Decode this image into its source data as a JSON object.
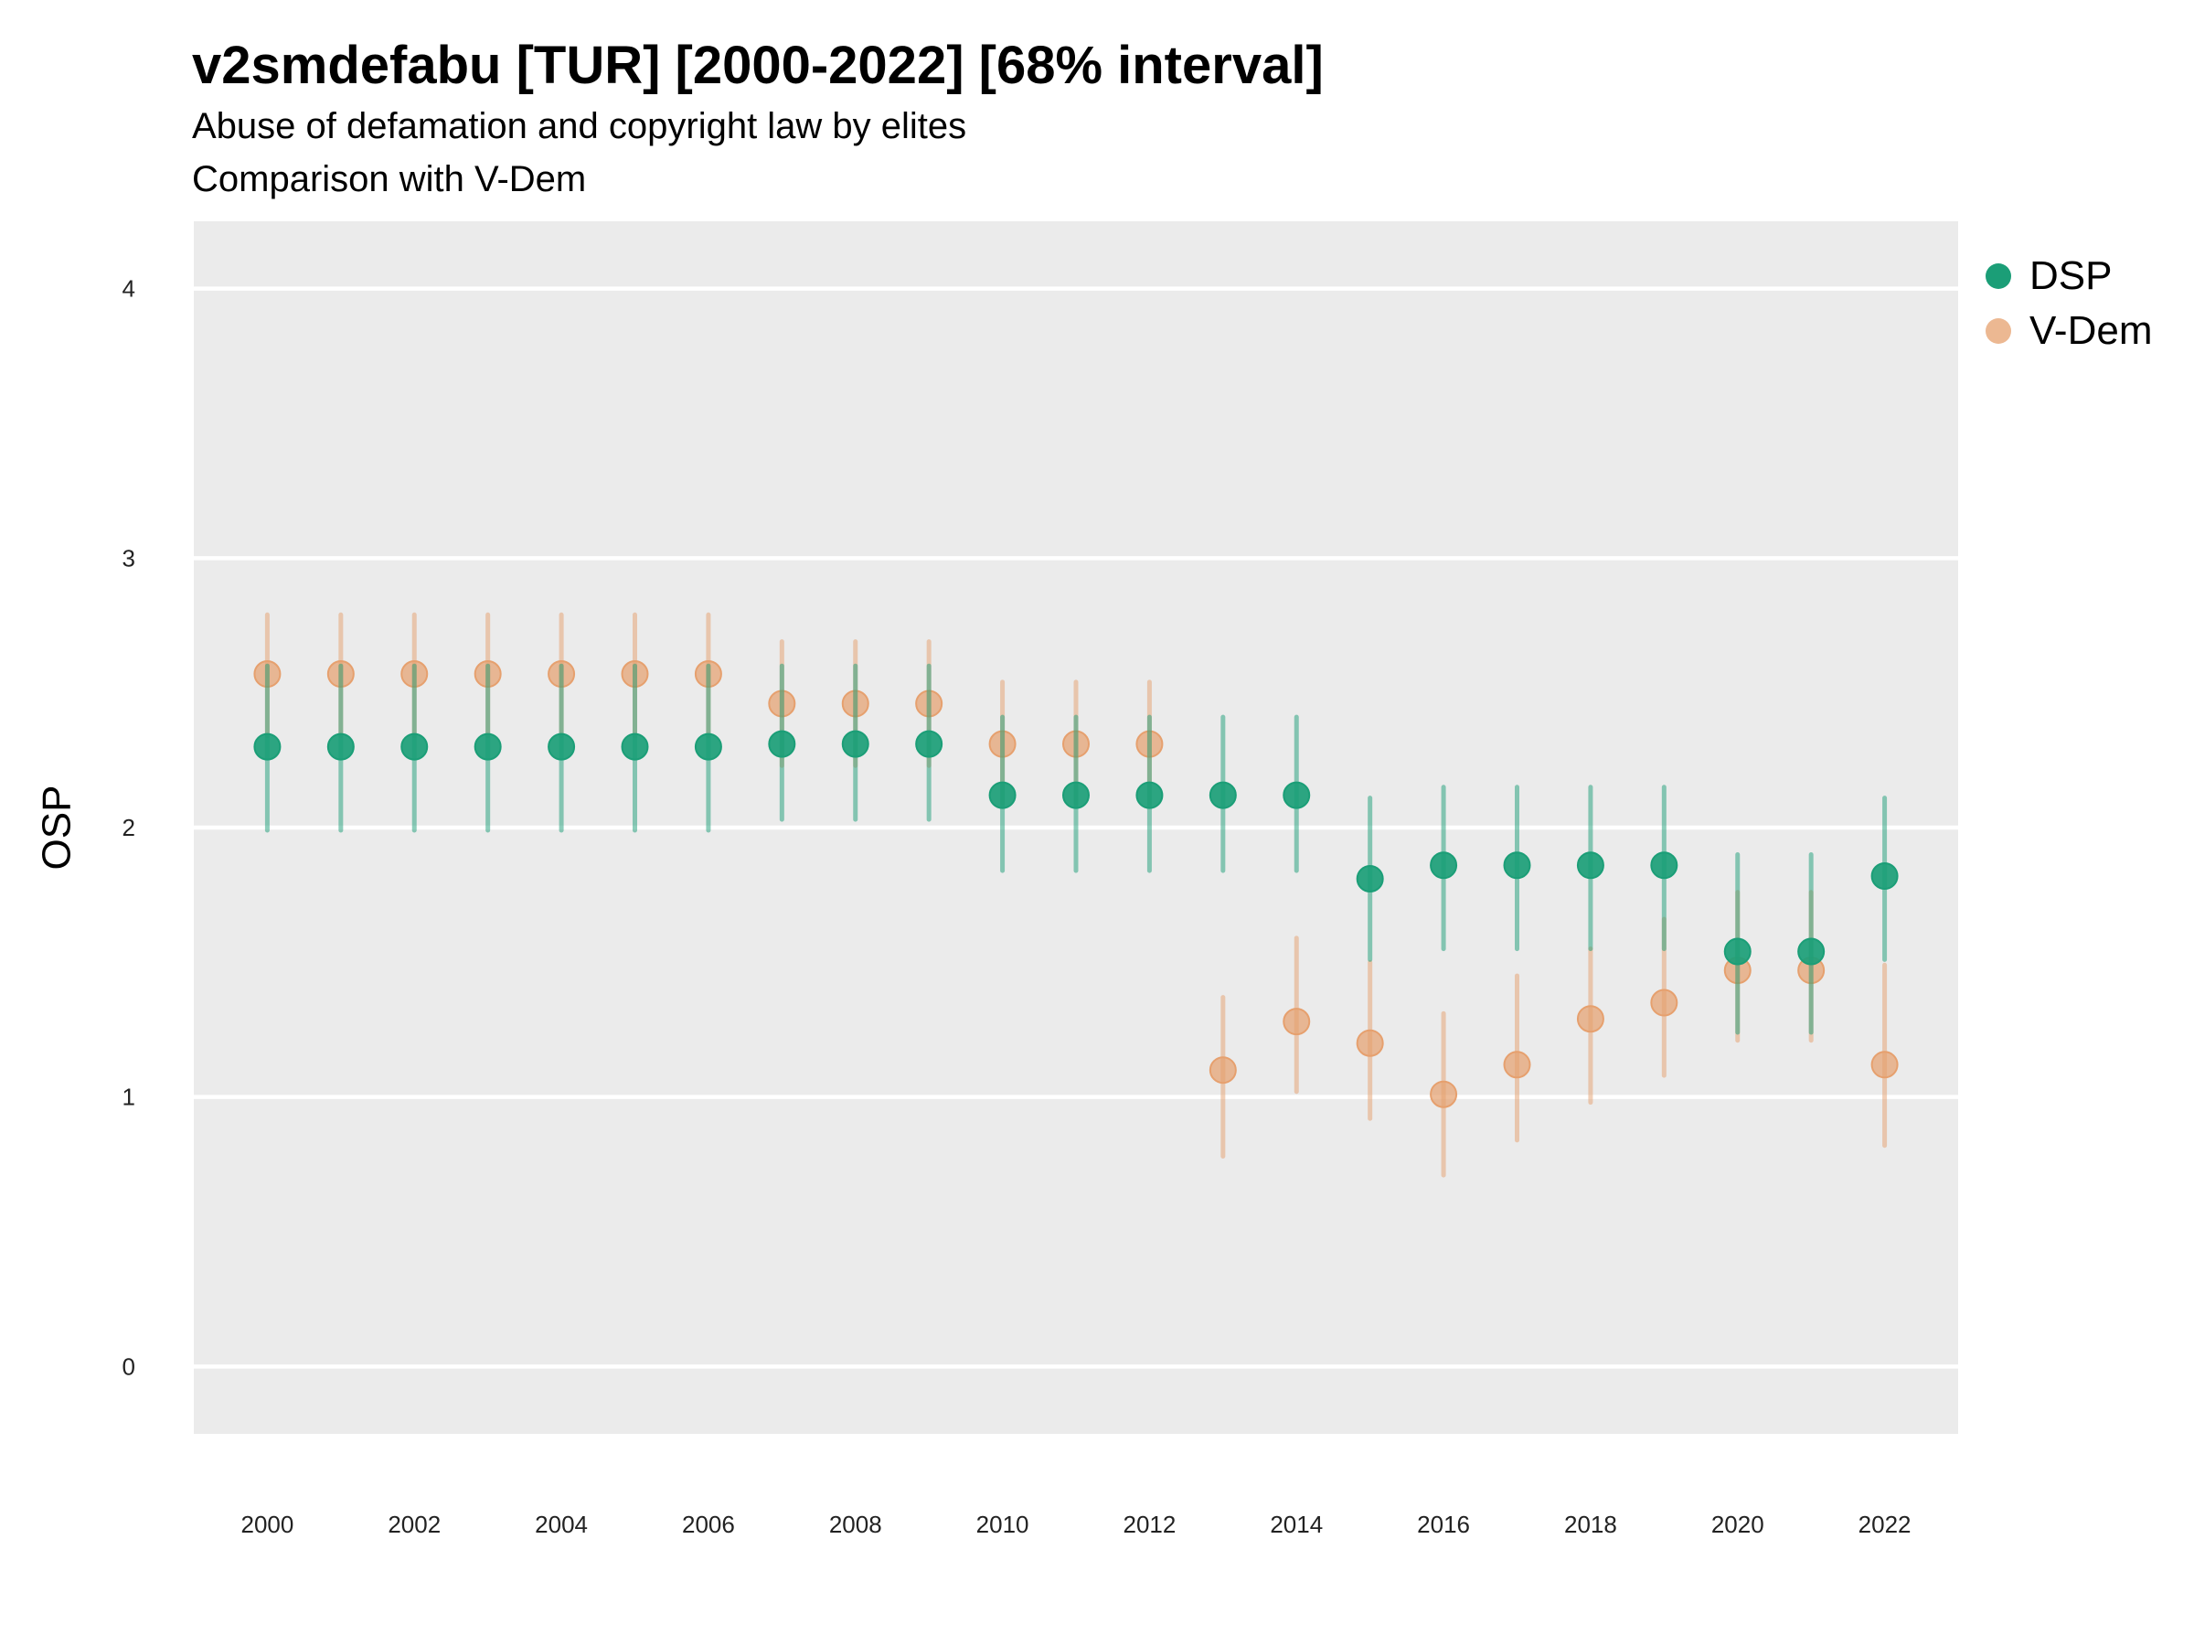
{
  "title": "v2smdefabu [TUR] [2000-2022] [68% interval]",
  "subtitle": "Abuse of defamation and copyright law by elites",
  "subtitle2": "Comparison with V-Dem",
  "colors": {
    "DSP": "#1b9e77",
    "V-Dem": "#e6a06e",
    "panel": "#ebebeb",
    "grid": "#ffffff"
  },
  "chart_data": {
    "type": "scatter",
    "xlabel": "",
    "ylabel": "OSP",
    "xlim": [
      1999,
      2023
    ],
    "ylim": [
      -0.25,
      4.25
    ],
    "yticks": [
      0,
      1,
      2,
      3,
      4
    ],
    "xticks": [
      2000,
      2002,
      2004,
      2006,
      2008,
      2010,
      2012,
      2014,
      2016,
      2018,
      2020,
      2022
    ],
    "legend_position": "right-top",
    "x": [
      2000,
      2001,
      2002,
      2003,
      2004,
      2005,
      2006,
      2007,
      2008,
      2009,
      2010,
      2011,
      2012,
      2013,
      2014,
      2015,
      2016,
      2017,
      2018,
      2019,
      2020,
      2021,
      2022
    ],
    "series": [
      {
        "name": "DSP",
        "color": "#1b9e77",
        "values": [
          2.3,
          2.3,
          2.3,
          2.3,
          2.3,
          2.3,
          2.3,
          2.31,
          2.31,
          2.31,
          2.12,
          2.12,
          2.12,
          2.12,
          2.12,
          1.81,
          1.86,
          1.86,
          1.86,
          1.86,
          1.54,
          1.54,
          1.82
        ],
        "lower": [
          1.99,
          1.99,
          1.99,
          1.99,
          1.99,
          1.99,
          1.99,
          2.03,
          2.03,
          2.03,
          1.84,
          1.84,
          1.84,
          1.84,
          1.84,
          1.51,
          1.55,
          1.55,
          1.55,
          1.55,
          1.24,
          1.24,
          1.51
        ],
        "upper": [
          2.6,
          2.6,
          2.6,
          2.6,
          2.6,
          2.6,
          2.6,
          2.6,
          2.6,
          2.6,
          2.41,
          2.41,
          2.41,
          2.41,
          2.41,
          2.11,
          2.15,
          2.15,
          2.15,
          2.15,
          1.9,
          1.9,
          2.11
        ]
      },
      {
        "name": "V-Dem",
        "color": "#e6a06e",
        "values": [
          2.57,
          2.57,
          2.57,
          2.57,
          2.57,
          2.57,
          2.57,
          2.46,
          2.46,
          2.46,
          2.31,
          2.31,
          2.31,
          1.1,
          1.28,
          1.2,
          1.01,
          1.12,
          1.29,
          1.35,
          1.47,
          1.47,
          1.12
        ],
        "lower": [
          2.34,
          2.34,
          2.34,
          2.34,
          2.34,
          2.34,
          2.34,
          2.23,
          2.23,
          2.23,
          2.09,
          2.09,
          2.09,
          0.78,
          1.02,
          0.92,
          0.71,
          0.84,
          0.98,
          1.08,
          1.21,
          1.21,
          0.82
        ],
        "upper": [
          2.79,
          2.79,
          2.79,
          2.79,
          2.79,
          2.79,
          2.79,
          2.69,
          2.69,
          2.69,
          2.54,
          2.54,
          2.54,
          1.37,
          1.59,
          1.5,
          1.31,
          1.45,
          1.55,
          1.66,
          1.76,
          1.76,
          1.49
        ]
      }
    ]
  }
}
